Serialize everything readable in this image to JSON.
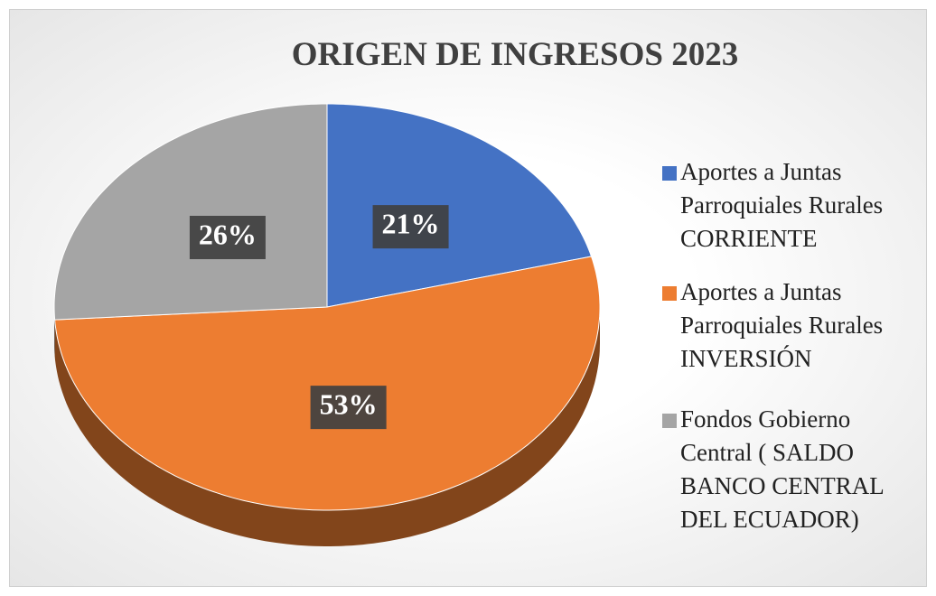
{
  "chart_data": {
    "type": "pie",
    "title": "ORIGEN DE INGRESOS 2023",
    "categories": [
      "Aportes a Juntas Parroquiales Rurales CORRIENTE",
      "Aportes a Juntas Parroquiales Rurales INVERSIÓN",
      "Fondos Gobierno Central ( SALDO BANCO CENTRAL DEL ECUADOR)"
    ],
    "values": [
      21,
      53,
      26
    ],
    "value_labels": [
      "21%",
      "53%",
      "26%"
    ],
    "colors": [
      "#4472c4",
      "#ed7d31",
      "#a5a5a5"
    ],
    "legend": "right"
  }
}
